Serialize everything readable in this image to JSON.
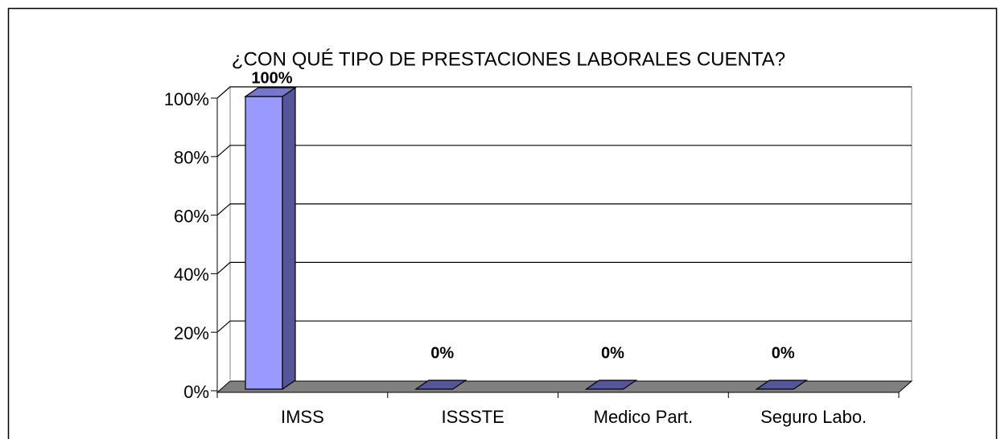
{
  "chart_data": {
    "type": "bar3d",
    "title": "¿CON QUÉ TIPO DE PRESTACIONES LABORALES CUENTA?",
    "categories": [
      "IMSS",
      "ISSSTE",
      "Medico Part.",
      "Seguro Labo."
    ],
    "values": [
      100,
      0,
      0,
      0
    ],
    "value_labels": [
      "100%",
      "0%",
      "0%",
      "0%"
    ],
    "color": "#9999ff",
    "side_color": "#555599",
    "top_color": "#7777cc",
    "floor_color": "#808080",
    "ylim": [
      0,
      100
    ],
    "yticks": [
      {
        "value": 0,
        "label": "0%"
      },
      {
        "value": 20,
        "label": "20%"
      },
      {
        "value": 40,
        "label": "40%"
      },
      {
        "value": 60,
        "label": "60%"
      },
      {
        "value": 80,
        "label": "80%"
      },
      {
        "value": 100,
        "label": "100%"
      }
    ],
    "grid": true
  }
}
